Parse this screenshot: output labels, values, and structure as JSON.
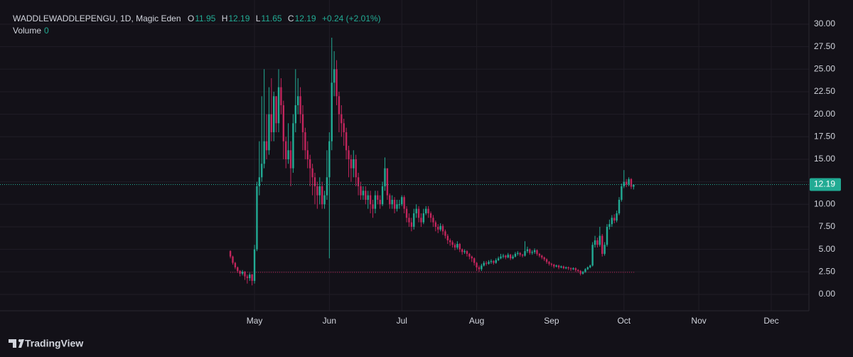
{
  "chart_data": {
    "type": "candlestick",
    "header": {
      "title": "WADDLEWADDLEPENGU, 1D, Magic Eden",
      "open_label": "O",
      "high_label": "H",
      "low_label": "L",
      "close_label": "C",
      "change": "+0.24 (+2.01%)",
      "volume_label": "Volume",
      "volume": 0
    },
    "brand": "TradingView",
    "up_color": "#22ab94",
    "down_color": "#c2255c",
    "grid": true,
    "reference_line": 2.45,
    "xlim": [
      16.6,
      351.6
    ],
    "xticks": [
      {
        "value": 122,
        "label": "May"
      },
      {
        "value": 153,
        "label": "Jun"
      },
      {
        "value": 183,
        "label": "Jul"
      },
      {
        "value": 214,
        "label": "Aug"
      },
      {
        "value": 245,
        "label": "Sep"
      },
      {
        "value": 275,
        "label": "Oct"
      },
      {
        "value": 306,
        "label": "Nov"
      },
      {
        "value": 336,
        "label": "Dec"
      }
    ],
    "ylim": [
      -1.82,
      32.05
    ],
    "yticks": [
      {
        "value": 0,
        "label": "0.00"
      },
      {
        "value": 2.5,
        "label": "2.50"
      },
      {
        "value": 5,
        "label": "5.00"
      },
      {
        "value": 7.5,
        "label": "7.50"
      },
      {
        "value": 10,
        "label": "10.00"
      },
      {
        "value": 12.5,
        "label": "12.50"
      },
      {
        "value": 15,
        "label": "15.00"
      },
      {
        "value": 17.5,
        "label": "17.50"
      },
      {
        "value": 20,
        "label": "20.00"
      },
      {
        "value": 22.5,
        "label": "22.50"
      },
      {
        "value": 25,
        "label": "25.00"
      },
      {
        "value": 27.5,
        "label": "27.50"
      },
      {
        "value": 30,
        "label": "30.00"
      }
    ],
    "candles": {
      "x": [
        112,
        113,
        114,
        115,
        116,
        117,
        118,
        119,
        120,
        121,
        122,
        123,
        124,
        125,
        126,
        127,
        128,
        129,
        130,
        131,
        132,
        133,
        134,
        135,
        136,
        137,
        138,
        139,
        140,
        141,
        142,
        143,
        144,
        145,
        146,
        147,
        148,
        149,
        150,
        151,
        152,
        153,
        154,
        155,
        156,
        157,
        158,
        159,
        160,
        161,
        162,
        163,
        164,
        165,
        166,
        167,
        168,
        169,
        170,
        171,
        172,
        173,
        174,
        175,
        176,
        177,
        178,
        179,
        180,
        181,
        182,
        183,
        184,
        185,
        186,
        187,
        188,
        189,
        190,
        191,
        192,
        193,
        194,
        195,
        196,
        197,
        198,
        199,
        200,
        201,
        202,
        203,
        204,
        205,
        206,
        207,
        208,
        209,
        210,
        211,
        212,
        213,
        214,
        215,
        216,
        217,
        218,
        219,
        220,
        221,
        222,
        223,
        224,
        225,
        226,
        227,
        228,
        229,
        230,
        231,
        232,
        233,
        234,
        235,
        236,
        237,
        238,
        239,
        240,
        241,
        242,
        243,
        244,
        245,
        246,
        247,
        248,
        249,
        250,
        251,
        252,
        253,
        254,
        255,
        256,
        257,
        258,
        259,
        260,
        261,
        262,
        263,
        264,
        265,
        266,
        267,
        268,
        269,
        270,
        271,
        272,
        273,
        274,
        275,
        276,
        277,
        278,
        279
      ],
      "open": [
        4.8,
        4.2,
        3.5,
        3.0,
        2.6,
        2.3,
        2.5,
        2.0,
        1.8,
        2.2,
        1.5,
        5.0,
        12,
        13,
        14.5,
        17,
        16,
        20,
        18,
        22,
        19,
        23,
        21,
        17,
        15,
        16,
        14,
        19,
        21,
        22,
        20,
        18,
        16,
        15,
        14,
        13,
        12,
        11,
        12,
        10,
        11,
        13,
        17,
        23.5,
        25,
        22,
        20,
        19,
        18,
        16,
        15,
        14,
        15,
        13,
        12,
        11,
        11.5,
        10.5,
        11,
        10,
        9.5,
        11,
        10.5,
        10,
        12,
        14,
        11,
        10,
        10.5,
        9.5,
        10,
        10,
        10.8,
        9.5,
        8.5,
        8,
        7.5,
        9,
        9.5,
        8.5,
        8,
        9,
        9.5,
        9,
        8.5,
        8,
        7.5,
        7.2,
        7.6,
        7,
        6.5,
        6,
        5.8,
        5.5,
        5.2,
        5.6,
        5,
        4.7,
        4.8,
        4.5,
        4.2,
        4,
        3.5,
        3,
        2.8,
        3.2,
        3.5,
        3.4,
        3.6,
        3.7,
        3.5,
        3.8,
        4,
        4.2,
        4.3,
        4.1,
        4.4,
        4,
        4.2,
        4.5,
        4.6,
        4.4,
        4.3,
        4.8,
        5,
        4.6,
        4.7,
        4.9,
        4.5,
        4.3,
        4.1,
        3.9,
        3.6,
        3.4,
        3.3,
        3.1,
        3.2,
        3,
        3.1,
        2.9,
        3,
        2.9,
        2.8,
        2.9,
        2.7,
        2.6,
        2.3,
        2.5,
        2.8,
        3,
        3.2,
        5.5,
        6,
        5.5,
        6.5,
        4.5,
        5.5,
        7.5,
        7.8,
        8.5,
        8.2,
        9,
        10.5,
        12,
        12.5,
        12.2,
        12.8,
        11.95
      ],
      "high": [
        4.9,
        4.3,
        3.6,
        3.1,
        2.7,
        2.7,
        2.6,
        2.2,
        2.4,
        2.3,
        5.5,
        12.5,
        17,
        22,
        25,
        20,
        23,
        24,
        22.5,
        22,
        25,
        24,
        21.5,
        17.5,
        19,
        17,
        20,
        25,
        24,
        23,
        21,
        18.5,
        17,
        15.5,
        14.5,
        13.5,
        12.5,
        13,
        12.5,
        11.5,
        16,
        18,
        28.5,
        27,
        26,
        22.5,
        21,
        19.5,
        18.5,
        16.5,
        15.5,
        16,
        15.5,
        13.5,
        12.5,
        12,
        12,
        11.5,
        11.5,
        10.5,
        11.5,
        11.5,
        11,
        12.5,
        15.2,
        14,
        11.2,
        11,
        10.8,
        10.5,
        10.5,
        11,
        11,
        9.8,
        9,
        8.5,
        9.5,
        10,
        9.8,
        9,
        9.5,
        9.8,
        9.8,
        9.2,
        8.8,
        8.2,
        7.8,
        7.9,
        7.8,
        7.2,
        6.7,
        6.2,
        6,
        5.7,
        5.9,
        5.7,
        5.1,
        5,
        4.9,
        4.6,
        4.3,
        4.1,
        3.6,
        3.2,
        3.4,
        3.7,
        3.7,
        3.8,
        3.9,
        3.8,
        4,
        4.2,
        4.5,
        4.5,
        4.4,
        4.6,
        4.5,
        4.4,
        4.7,
        4.8,
        4.7,
        4.5,
        5.9,
        5.3,
        5.1,
        4.9,
        5.1,
        5,
        4.6,
        4.4,
        4.2,
        4,
        3.7,
        3.5,
        3.4,
        3.3,
        3.3,
        3.2,
        3.2,
        3.1,
        3.1,
        3,
        3,
        3,
        2.8,
        2.7,
        2.6,
        2.9,
        3.1,
        3.3,
        5.8,
        6.5,
        6.3,
        7.5,
        6.7,
        5.8,
        7.8,
        8.3,
        8.8,
        8.9,
        9.3,
        10.8,
        12.3,
        13.8,
        12.8,
        13,
        12.9,
        12.19
      ],
      "low": [
        4.0,
        3.3,
        2.8,
        2.4,
        2.0,
        2.1,
        1.6,
        1.2,
        1.5,
        1.0,
        1.2,
        4.8,
        11,
        12.5,
        14,
        15,
        15.5,
        17,
        17,
        18,
        18,
        20,
        15,
        14,
        14.5,
        12,
        13.5,
        18,
        20,
        19,
        16,
        15,
        14,
        12,
        11,
        10,
        9.5,
        10,
        9.5,
        9.5,
        10.5,
        4,
        16,
        22,
        21,
        18,
        17.5,
        16.5,
        15,
        13,
        12.5,
        13,
        12,
        11,
        10.5,
        10.5,
        10,
        9.5,
        9,
        8.5,
        9,
        10,
        9.5,
        9.8,
        11.5,
        10.5,
        9.5,
        9.5,
        9,
        9.2,
        9.5,
        9.8,
        9,
        8,
        7.5,
        7,
        7.2,
        8.5,
        8,
        7.5,
        7.8,
        8.8,
        8.5,
        8,
        7.5,
        7,
        6.8,
        7,
        6.6,
        6.2,
        5.6,
        5.4,
        5.2,
        4.9,
        5,
        4.7,
        4.4,
        4.5,
        4.2,
        3.9,
        3.6,
        3.2,
        2.6,
        2.5,
        2.6,
        3.1,
        3.2,
        3.3,
        3.4,
        3.3,
        3.4,
        3.7,
        3.9,
        4,
        3.9,
        4,
        3.8,
        3.9,
        4.1,
        4.3,
        4.2,
        4.1,
        4.2,
        4.6,
        4.4,
        4.4,
        4.5,
        4.3,
        4.1,
        3.9,
        3.7,
        3.4,
        3.2,
        3.1,
        2.9,
        3,
        2.8,
        2.9,
        2.8,
        2.8,
        2.7,
        2.6,
        2.7,
        2.5,
        2.4,
        2.1,
        2.2,
        2.4,
        2.7,
        2.9,
        3.1,
        5.2,
        5.2,
        5.3,
        4.2,
        4.3,
        5.3,
        7.2,
        7.5,
        7.9,
        8,
        8.8,
        10.3,
        11.8,
        11.9,
        12,
        11.7,
        11.65
      ],
      "close": [
        4.2,
        3.5,
        3.0,
        2.6,
        2.3,
        2.5,
        2.0,
        1.8,
        2.2,
        1.5,
        5.0,
        12,
        13,
        14.5,
        17,
        16,
        20,
        18,
        22,
        19,
        23,
        21,
        17,
        15,
        16,
        14,
        19,
        21,
        22,
        20,
        18,
        16,
        15,
        14,
        13,
        12,
        11,
        12,
        10,
        11,
        13,
        17,
        23.5,
        25,
        22,
        20,
        19,
        18,
        16,
        15,
        14,
        15,
        13,
        12,
        11,
        11.5,
        10.5,
        11,
        10,
        9.5,
        11,
        10.5,
        10,
        12,
        14,
        11,
        10,
        10.5,
        9.5,
        10,
        10,
        10.8,
        9.5,
        8.5,
        8,
        7.5,
        9,
        9.5,
        8.5,
        8,
        9,
        9.5,
        9,
        8.5,
        8,
        7.5,
        7.2,
        7.6,
        7,
        6.5,
        6,
        5.8,
        5.5,
        5.2,
        5.6,
        5,
        4.7,
        4.8,
        4.5,
        4.2,
        4,
        3.5,
        3,
        2.8,
        3.2,
        3.5,
        3.4,
        3.6,
        3.7,
        3.5,
        3.8,
        4,
        4.2,
        4.3,
        4.1,
        4.4,
        4,
        4.2,
        4.5,
        4.6,
        4.4,
        4.3,
        4.8,
        5,
        4.6,
        4.7,
        4.9,
        4.5,
        4.3,
        4.1,
        3.9,
        3.6,
        3.4,
        3.3,
        3.1,
        3.2,
        3,
        3.1,
        2.9,
        3,
        2.9,
        2.8,
        2.9,
        2.7,
        2.6,
        2.3,
        2.5,
        2.8,
        3,
        3.2,
        5.5,
        6,
        5.5,
        6.5,
        4.5,
        5.5,
        7.5,
        7.8,
        8.5,
        8.2,
        9,
        10.5,
        12,
        12.5,
        12.2,
        12.8,
        11.95,
        12.19
      ]
    }
  }
}
